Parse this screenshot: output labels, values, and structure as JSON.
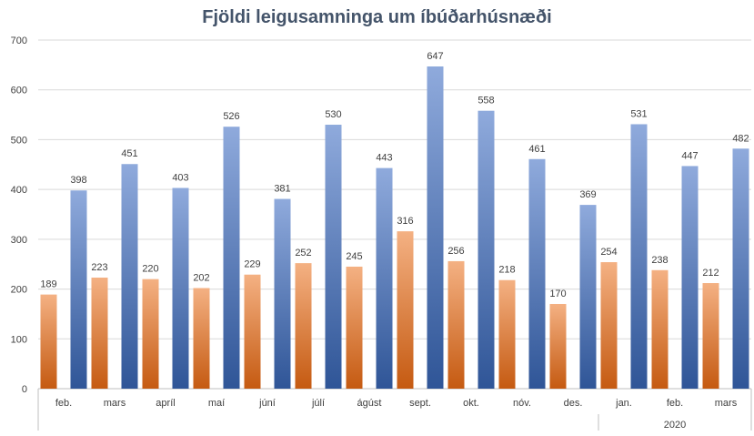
{
  "chart_data": {
    "type": "bar",
    "title": "Fjöldi leigusamninga um íbúðarhúsnæði",
    "categories": [
      "feb.",
      "mars",
      "apríl",
      "maí",
      "júní",
      "júlí",
      "ágúst",
      "sept.",
      "okt.",
      "nóv.",
      "des.",
      "jan.",
      "feb.",
      "mars"
    ],
    "group_labels": [
      {
        "label": "",
        "from": 0,
        "to": 10
      },
      {
        "label": "2020",
        "from": 11,
        "to": 13
      }
    ],
    "series": [
      {
        "values": [
          189,
          223,
          220,
          202,
          229,
          252,
          245,
          316,
          256,
          218,
          170,
          254,
          238,
          212
        ],
        "color_top": "#f4b183",
        "color_bottom": "#c55a11"
      },
      {
        "values": [
          398,
          451,
          403,
          526,
          381,
          530,
          443,
          647,
          558,
          461,
          369,
          531,
          447,
          482
        ],
        "color_top": "#8faadc",
        "color_bottom": "#2f5597"
      }
    ],
    "ylim": [
      0,
      700
    ],
    "yticks": [
      0,
      100,
      200,
      300,
      400,
      500,
      600,
      700
    ],
    "xlabel": "",
    "ylabel": "",
    "grid": true,
    "legend": "none"
  }
}
